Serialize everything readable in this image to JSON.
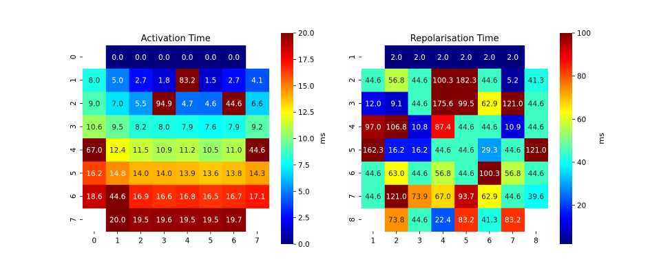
{
  "chart_data": [
    {
      "type": "heatmap",
      "title": "Activation Time",
      "xlabel": "",
      "ylabel": "",
      "x_tick_labels": [
        "0",
        "1",
        "2",
        "3",
        "4",
        "5",
        "6",
        "7"
      ],
      "y_tick_labels": [
        "0",
        "1",
        "2",
        "3",
        "4",
        "5",
        "6",
        "7"
      ],
      "colormap": "jet",
      "vmin": 0,
      "vmax": 20,
      "colorbar_label": "ms",
      "colorbar_ticks": [
        "0.0",
        "2.5",
        "5.0",
        "7.5",
        "10.0",
        "12.5",
        "15.0",
        "17.5",
        "20.0"
      ],
      "value_format": "1 decimal",
      "values": [
        [
          null,
          0.0,
          0.0,
          0.0,
          0.0,
          0.0,
          0.0,
          null
        ],
        [
          8.0,
          5.0,
          2.7,
          1.8,
          83.2,
          1.5,
          2.7,
          4.1
        ],
        [
          9.0,
          7.0,
          5.5,
          94.9,
          4.7,
          4.6,
          44.6,
          6.6
        ],
        [
          10.6,
          9.5,
          8.2,
          8.0,
          7.9,
          7.6,
          7.9,
          9.2
        ],
        [
          67.0,
          12.4,
          11.5,
          10.9,
          11.2,
          10.5,
          11.0,
          44.6
        ],
        [
          16.2,
          14.8,
          14.0,
          14.0,
          13.9,
          13.6,
          13.8,
          14.3
        ],
        [
          18.6,
          44.6,
          16.9,
          16.6,
          16.8,
          16.5,
          16.7,
          17.1
        ],
        [
          null,
          20.0,
          19.5,
          19.6,
          19.5,
          19.5,
          19.7,
          null
        ]
      ]
    },
    {
      "type": "heatmap",
      "title": "Repolarisation Time",
      "xlabel": "",
      "ylabel": "",
      "x_tick_labels": [
        "1",
        "2",
        "3",
        "4",
        "5",
        "6",
        "7",
        "8"
      ],
      "y_tick_labels": [
        "1",
        "2",
        "3",
        "4",
        "5",
        "6",
        "7",
        "8"
      ],
      "colormap": "jet",
      "vmin": 2,
      "vmax": 100,
      "colorbar_label": "ms",
      "colorbar_ticks": [
        "20",
        "40",
        "60",
        "80",
        "100"
      ],
      "colorbar_tick_values": [
        20,
        40,
        60,
        80,
        100
      ],
      "value_format": "1 decimal",
      "values": [
        [
          null,
          2.0,
          2.0,
          2.0,
          2.0,
          2.0,
          2.0,
          null
        ],
        [
          44.6,
          56.8,
          44.6,
          100.3,
          182.3,
          44.6,
          5.2,
          41.3
        ],
        [
          12.0,
          9.1,
          44.6,
          175.6,
          99.5,
          62.9,
          121.0,
          44.6
        ],
        [
          97.0,
          106.8,
          10.8,
          87.4,
          44.6,
          44.6,
          10.9,
          44.6
        ],
        [
          162.3,
          16.2,
          16.2,
          44.6,
          44.6,
          29.3,
          44.6,
          121.0
        ],
        [
          44.6,
          63.0,
          44.6,
          56.8,
          44.6,
          100.3,
          56.8,
          44.6
        ],
        [
          44.6,
          121.0,
          73.9,
          67.0,
          93.7,
          62.9,
          44.6,
          39.6
        ],
        [
          null,
          73.8,
          44.6,
          22.4,
          83.2,
          41.3,
          83.2,
          null
        ]
      ]
    }
  ]
}
